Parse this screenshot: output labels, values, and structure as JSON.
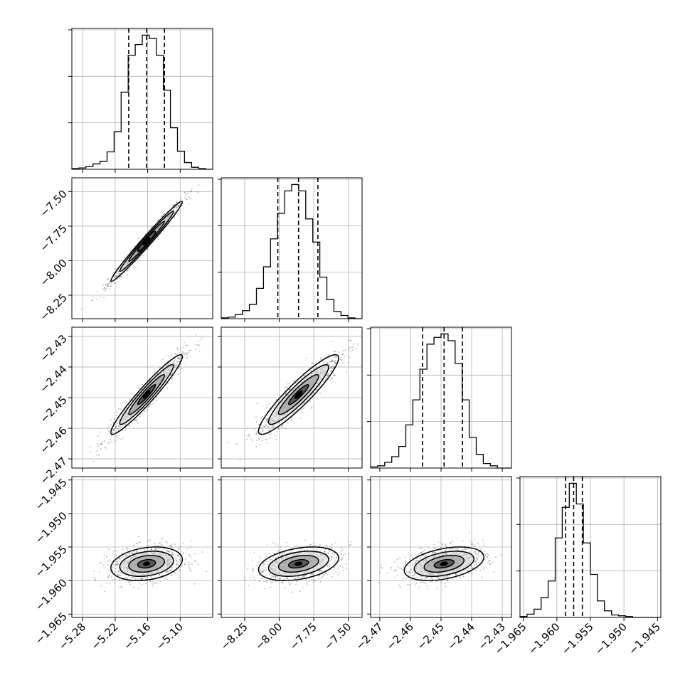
{
  "chart_data": {
    "type": "corner",
    "title": "",
    "parameters": [
      {
        "label": "",
        "range": [
          -5.3,
          -5.04
        ],
        "ticks": [
          -5.28,
          -5.22,
          -5.16,
          -5.1
        ],
        "tick_labels": [
          "−5.28",
          "−5.22",
          "−5.16",
          "−5.10"
        ],
        "quantiles": [
          -5.195,
          -5.162,
          -5.129
        ]
      },
      {
        "label": "",
        "range": [
          -8.42,
          -7.4
        ],
        "ticks": [
          -8.25,
          -8.0,
          -7.75,
          -7.5
        ],
        "tick_labels": [
          "−8.25",
          "−8.00",
          "−7.75",
          "−7.50"
        ],
        "quantiles": [
          -8.01,
          -7.86,
          -7.72
        ]
      },
      {
        "label": "",
        "range": [
          -2.473,
          -2.427
        ],
        "ticks": [
          -2.47,
          -2.46,
          -2.45,
          -2.44,
          -2.43
        ],
        "tick_labels": [
          "−2.47",
          "−2.46",
          "−2.45",
          "−2.44",
          "−2.43"
        ],
        "quantiles": [
          -2.456,
          -2.449,
          -2.443
        ]
      },
      {
        "label": "",
        "range": [
          -1.9655,
          -1.9445
        ],
        "ticks": [
          -1.965,
          -1.96,
          -1.955,
          -1.95,
          -1.945
        ],
        "tick_labels": [
          "−1.965",
          "−1.960",
          "−1.955",
          "−1.950",
          "−1.945"
        ],
        "quantiles": [
          -1.9587,
          -1.9575,
          -1.9562
        ]
      }
    ],
    "histograms": [
      {
        "param": 0,
        "bins": [
          -5.3,
          -5.287,
          -5.274,
          -5.261,
          -5.248,
          -5.235,
          -5.222,
          -5.209,
          -5.196,
          -5.183,
          -5.17,
          -5.157,
          -5.144,
          -5.131,
          -5.118,
          -5.105,
          -5.092,
          -5.079,
          -5.066,
          -5.053,
          -5.04
        ],
        "counts": [
          1,
          2,
          4,
          8,
          12,
          26,
          56,
          115,
          170,
          186,
          200,
          195,
          170,
          118,
          62,
          27,
          10,
          3,
          1,
          0
        ]
      },
      {
        "param": 1,
        "bins": [
          -8.42,
          -8.369,
          -8.318,
          -8.267,
          -8.216,
          -8.165,
          -8.114,
          -8.063,
          -8.012,
          -7.961,
          -7.91,
          -7.859,
          -7.808,
          -7.757,
          -7.706,
          -7.655,
          -7.604,
          -7.553,
          -7.502,
          -7.451,
          -7.4
        ],
        "counts": [
          1,
          2,
          5,
          10,
          18,
          38,
          65,
          100,
          132,
          160,
          168,
          160,
          125,
          96,
          52,
          24,
          9,
          4,
          1,
          0
        ]
      },
      {
        "param": 2,
        "bins": [
          -2.473,
          -2.4707,
          -2.4684,
          -2.4661,
          -2.4638,
          -2.4615,
          -2.4592,
          -2.4569,
          -2.4546,
          -2.4523,
          -2.45,
          -2.4477,
          -2.4454,
          -2.4431,
          -2.4408,
          -2.4385,
          -2.4362,
          -2.4339,
          -2.4316,
          -2.4293,
          -2.427
        ],
        "counts": [
          1,
          2,
          5,
          10,
          19,
          38,
          60,
          87,
          109,
          115,
          118,
          112,
          92,
          60,
          27,
          12,
          4,
          2,
          0,
          0
        ]
      },
      {
        "param": 3,
        "bins": [
          -1.9655,
          -1.96445,
          -1.9634,
          -1.96235,
          -1.9613,
          -1.96025,
          -1.9592,
          -1.95815,
          -1.9571,
          -1.95605,
          -1.955,
          -1.95395,
          -1.9529,
          -1.95185,
          -1.9508,
          -1.94975,
          -1.9487,
          -1.94765,
          -1.9466,
          -1.94555,
          -1.9445
        ],
        "counts": [
          1,
          4,
          10,
          24,
          44,
          96,
          133,
          162,
          137,
          90,
          52,
          20,
          8,
          3,
          2,
          1,
          0,
          0,
          0,
          0
        ]
      }
    ],
    "scatter_correlations": [
      {
        "x": 1,
        "y": 0,
        "rho": 0.985
      },
      {
        "x": 2,
        "y": 0,
        "rho": 0.955
      },
      {
        "x": 2,
        "y": 1,
        "rho": 0.92
      },
      {
        "x": 3,
        "y": 0,
        "rho": 0.25
      },
      {
        "x": 3,
        "y": 1,
        "rho": 0.35
      },
      {
        "x": 3,
        "y": 2,
        "rho": 0.4
      }
    ],
    "grid": true,
    "colors": {
      "ink": "#000000",
      "scatter": "#333333",
      "grid": "#b0b0b0",
      "fill_dark": "#000000"
    }
  }
}
